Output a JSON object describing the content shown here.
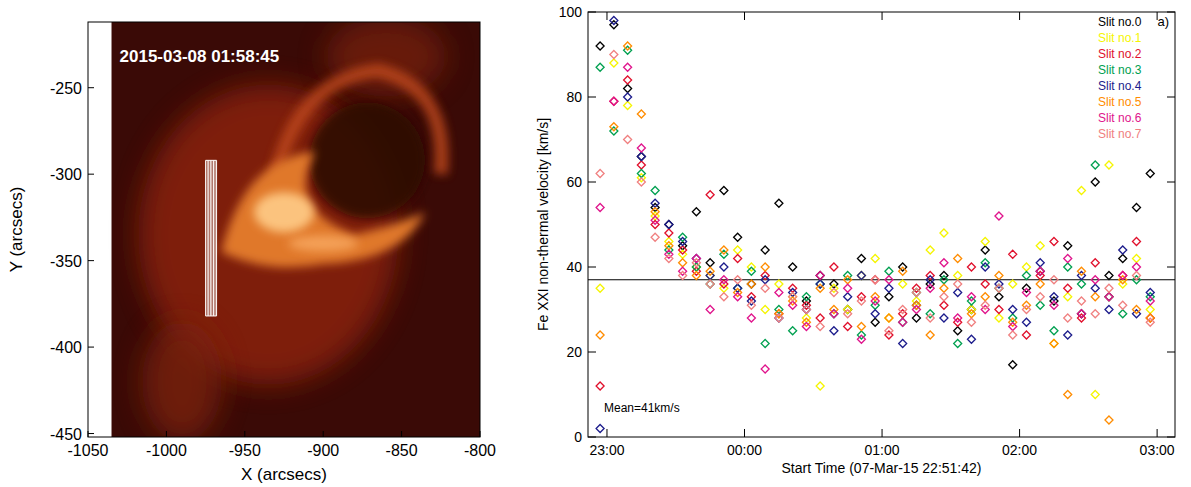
{
  "chart_data": [
    {
      "type": "image",
      "title": "2015-03-08 01:58:45",
      "x_label": "X (arcsecs)",
      "y_label": "Y (arcsecs)",
      "xlim": [
        -1050,
        -800
      ],
      "xticks": [
        -1050,
        -1000,
        -950,
        -900,
        -850,
        -800
      ],
      "ylim": [
        -452,
        -212
      ],
      "yticks": [
        -450,
        -400,
        -350,
        -300,
        -250
      ],
      "image_extent_x": [
        -1035,
        -800
      ],
      "slits": {
        "x": [
          -975,
          -974,
          -973,
          -972,
          -971,
          -970,
          -969,
          -968
        ],
        "y": [
          -292,
          -382
        ]
      }
    },
    {
      "type": "scatter",
      "x_label": "Start Time (07-Mar-15 22:51:42)",
      "y_label": "Fe XXI non-thermal velocity [km/s]",
      "panel_label": "a)",
      "annotation": "Mean=41km/s",
      "reference_line": 37,
      "marker": "diamond",
      "legend": "top-right",
      "xlim": [
        22.862,
        27.13
      ],
      "xticks": [
        {
          "value": 23,
          "label": "23:00"
        },
        {
          "value": 24,
          "label": "00:00"
        },
        {
          "value": 25,
          "label": "01:00"
        },
        {
          "value": 26,
          "label": "02:00"
        },
        {
          "value": 27,
          "label": "03:00"
        }
      ],
      "ylim": [
        0,
        100
      ],
      "yticks": [
        0,
        20,
        40,
        60,
        80,
        100
      ],
      "x": [
        22.95,
        23.05,
        23.15,
        23.25,
        23.35,
        23.45,
        23.55,
        23.65,
        23.75,
        23.85,
        23.95,
        24.05,
        24.15,
        24.25,
        24.35,
        24.45,
        24.55,
        24.65,
        24.75,
        24.85,
        24.95,
        25.05,
        25.15,
        25.25,
        25.35,
        25.45,
        25.55,
        25.65,
        25.75,
        25.85,
        25.95,
        26.05,
        26.15,
        26.25,
        26.35,
        26.45,
        26.55,
        26.65,
        26.75,
        26.85,
        26.95
      ],
      "series": [
        {
          "name": "Slit no.0",
          "color": "#000000",
          "values": [
            92,
            97,
            82,
            66,
            54,
            50,
            45,
            53,
            41,
            58,
            47,
            36,
            44,
            55,
            40,
            32,
            38,
            36,
            30,
            42,
            27,
            33,
            40,
            28,
            36,
            38,
            25,
            30,
            44,
            33,
            17,
            35,
            39,
            32,
            45,
            29,
            60,
            38,
            42,
            54,
            62
          ]
        },
        {
          "name": "Slit no.1",
          "color": "#f5f500",
          "values": [
            35,
            88,
            78,
            61,
            52,
            46,
            43,
            40,
            38,
            35,
            44,
            40,
            30,
            36,
            33,
            28,
            12,
            35,
            30,
            38,
            42,
            28,
            36,
            32,
            44,
            48,
            38,
            30,
            46,
            28,
            36,
            40,
            45,
            22,
            33,
            58,
            10,
            64,
            36,
            42,
            30
          ]
        },
        {
          "name": "Slit no.2",
          "color": "#e0102c",
          "values": [
            12,
            79,
            84,
            64,
            50,
            48,
            44,
            39,
            57,
            36,
            42,
            33,
            38,
            29,
            35,
            31,
            28,
            40,
            26,
            33,
            37,
            24,
            29,
            35,
            38,
            31,
            27,
            40,
            36,
            30,
            43,
            24,
            38,
            46,
            35,
            28,
            41,
            33,
            38,
            46,
            28
          ]
        },
        {
          "name": "Slit no.3",
          "color": "#00a050",
          "values": [
            87,
            72,
            91,
            62,
            58,
            44,
            47,
            40,
            36,
            43,
            35,
            39,
            22,
            30,
            25,
            33,
            36,
            29,
            38,
            24,
            31,
            39,
            27,
            34,
            29,
            37,
            22,
            32,
            41,
            35,
            28,
            38,
            31,
            25,
            40,
            36,
            64,
            33,
            29,
            37,
            33
          ]
        },
        {
          "name": "Slit no.4",
          "color": "#1c1c8c",
          "values": [
            2,
            98,
            80,
            66,
            55,
            50,
            46,
            42,
            38,
            40,
            35,
            32,
            37,
            28,
            34,
            30,
            36,
            25,
            33,
            38,
            29,
            35,
            22,
            31,
            37,
            28,
            34,
            23,
            40,
            36,
            30,
            27,
            41,
            33,
            24,
            38,
            35,
            30,
            44,
            29,
            34
          ]
        },
        {
          "name": "Slit no.5",
          "color": "#ff8c00",
          "values": [
            24,
            73,
            92,
            76,
            53,
            45,
            41,
            38,
            39,
            44,
            34,
            36,
            40,
            29,
            32,
            27,
            35,
            30,
            37,
            26,
            33,
            28,
            39,
            31,
            24,
            35,
            42,
            29,
            33,
            38,
            27,
            31,
            36,
            22,
            10,
            39,
            33,
            4,
            37,
            30,
            28
          ]
        },
        {
          "name": "Slit no.6",
          "color": "#e0148c",
          "values": [
            54,
            79,
            87,
            68,
            51,
            43,
            39,
            42,
            30,
            37,
            33,
            28,
            16,
            34,
            31,
            26,
            38,
            29,
            35,
            23,
            32,
            37,
            27,
            30,
            35,
            41,
            28,
            33,
            30,
            52,
            26,
            34,
            39,
            31,
            42,
            29,
            37,
            33,
            38,
            40,
            32
          ]
        },
        {
          "name": "Slit no.7",
          "color": "#f08080",
          "values": [
            62,
            90,
            70,
            60,
            47,
            42,
            38,
            41,
            36,
            33,
            37,
            31,
            35,
            28,
            33,
            30,
            26,
            34,
            29,
            32,
            37,
            25,
            30,
            34,
            28,
            33,
            36,
            27,
            31,
            35,
            24,
            30,
            33,
            37,
            28,
            32,
            29,
            35,
            31,
            38,
            27
          ]
        }
      ]
    }
  ]
}
